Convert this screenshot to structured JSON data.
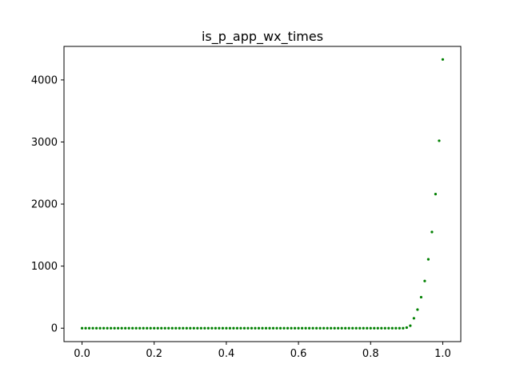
{
  "chart_data": {
    "type": "scatter",
    "title": "is_p_app_wx_times",
    "xlabel": "",
    "ylabel": "",
    "xlim": [
      -0.05,
      1.05
    ],
    "ylim": [
      -216,
      4540
    ],
    "xticks": [
      0.0,
      0.2,
      0.4,
      0.6,
      0.8,
      1.0
    ],
    "xtick_labels": [
      "0.0",
      "0.2",
      "0.4",
      "0.6",
      "0.8",
      "1.0"
    ],
    "yticks": [
      0,
      1000,
      2000,
      3000,
      4000
    ],
    "ytick_labels": [
      "0",
      "1000",
      "2000",
      "3000",
      "4000"
    ],
    "grid": false,
    "marker_color": "#008000",
    "series": [
      {
        "points": [
          [
            0.9,
            10
          ],
          [
            0.91,
            40
          ],
          [
            0.92,
            160
          ],
          [
            0.93,
            300
          ],
          [
            0.94,
            500
          ],
          [
            0.95,
            760
          ],
          [
            0.96,
            1110
          ],
          [
            0.97,
            1550
          ],
          [
            0.98,
            2160
          ],
          [
            0.99,
            3020
          ],
          [
            1.0,
            4330
          ]
        ],
        "flat_x_start": 0.0,
        "flat_x_end": 0.89,
        "flat_x_step": 0.01,
        "flat_y": 0
      }
    ]
  }
}
